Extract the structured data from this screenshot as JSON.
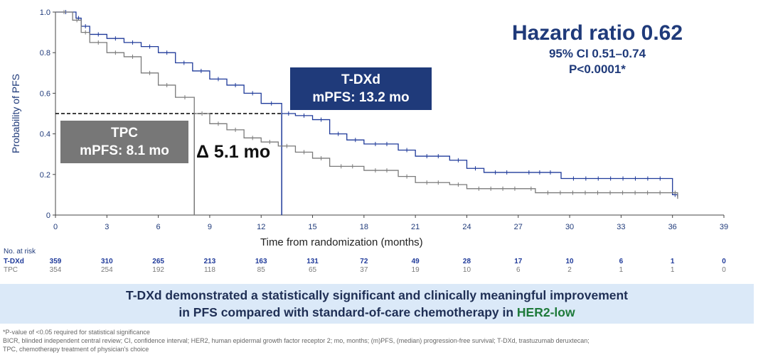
{
  "chart_data": {
    "type": "line",
    "title": "",
    "xlabel": "Time from randomization (months)",
    "ylabel": "Probability of PFS",
    "xlim": [
      0,
      39
    ],
    "ylim": [
      0,
      1.0
    ],
    "xticks": [
      0,
      3,
      6,
      9,
      12,
      15,
      18,
      21,
      24,
      27,
      30,
      33,
      36,
      39
    ],
    "yticks": [
      "0",
      "0.2",
      "0.4",
      "0.6",
      "0.8",
      "1.0"
    ],
    "grid": false,
    "series": [
      {
        "name": "T-DXd",
        "color": "#1f3a9a",
        "x": [
          0,
          1.2,
          1.5,
          2,
          3,
          4,
          5,
          6,
          7,
          8,
          9,
          10,
          11,
          12,
          13.2,
          14,
          15,
          16,
          17,
          18,
          20,
          21,
          23,
          24,
          25,
          27,
          29.5,
          36,
          36.3
        ],
        "y": [
          1.0,
          0.97,
          0.93,
          0.89,
          0.87,
          0.85,
          0.83,
          0.8,
          0.75,
          0.71,
          0.67,
          0.64,
          0.6,
          0.55,
          0.5,
          0.49,
          0.47,
          0.4,
          0.37,
          0.35,
          0.32,
          0.29,
          0.27,
          0.23,
          0.21,
          0.21,
          0.18,
          0.1,
          0.09
        ]
      },
      {
        "name": "TPC",
        "color": "#7a7a7a",
        "x": [
          0,
          1,
          1.5,
          2,
          3,
          4,
          5,
          6,
          7,
          8.1,
          9,
          10,
          11,
          12,
          13,
          14,
          15,
          16,
          18,
          20,
          21,
          23,
          24,
          27.5,
          28,
          36,
          36.3
        ],
        "y": [
          1.0,
          0.96,
          0.9,
          0.85,
          0.8,
          0.78,
          0.7,
          0.64,
          0.58,
          0.5,
          0.45,
          0.42,
          0.38,
          0.36,
          0.34,
          0.31,
          0.28,
          0.24,
          0.22,
          0.19,
          0.16,
          0.15,
          0.13,
          0.13,
          0.11,
          0.11,
          0.08
        ]
      }
    ],
    "reference_line_y": 0.5,
    "median_markers": [
      {
        "series": "TPC",
        "x": 8.1
      },
      {
        "series": "T-DXd",
        "x": 13.2
      }
    ],
    "annotations": {
      "hazard_ratio": "Hazard ratio 0.62",
      "ci": "95% CI 0.51–0.74",
      "p": "P<0.0001*",
      "tdxd_label": "T-DXd",
      "tdxd_mpfs": "mPFS: 13.2 mo",
      "tpc_label": "TPC",
      "tpc_mpfs": "mPFS: 8.1 mo",
      "delta": "Δ 5.1 mo"
    },
    "risk_table": {
      "title": "No. at risk",
      "rows": [
        {
          "name": "T-DXd",
          "color": "#1f3a9a",
          "values": [
            "359",
            "310",
            "265",
            "213",
            "163",
            "131",
            "72",
            "49",
            "28",
            "17",
            "10",
            "6",
            "1",
            "0"
          ]
        },
        {
          "name": "TPC",
          "color": "#7a7a7a",
          "values": [
            "354",
            "254",
            "192",
            "118",
            "85",
            "65",
            "37",
            "19",
            "10",
            "6",
            "2",
            "1",
            "1",
            "0"
          ]
        }
      ]
    }
  },
  "banner": {
    "line1": "T-DXd demonstrated a statistically significant and clinically meaningful improvement",
    "line2_prefix": "in PFS compared with standard-of-care chemotherapy in ",
    "line2_highlight": "HER2-low",
    "highlight_color": "#1e7a3a"
  },
  "footnotes": [
    "*P-value of <0.05 required for statistical significance",
    "BICR, blinded independent central review; CI, confidence interval; HER2, human epidermal growth factor receptor 2; mo, months; (m)PFS, (median) progression-free survival; T-DXd, trastuzumab deruxtecan;",
    "TPC, chemotherapy treatment of physician's choice"
  ]
}
